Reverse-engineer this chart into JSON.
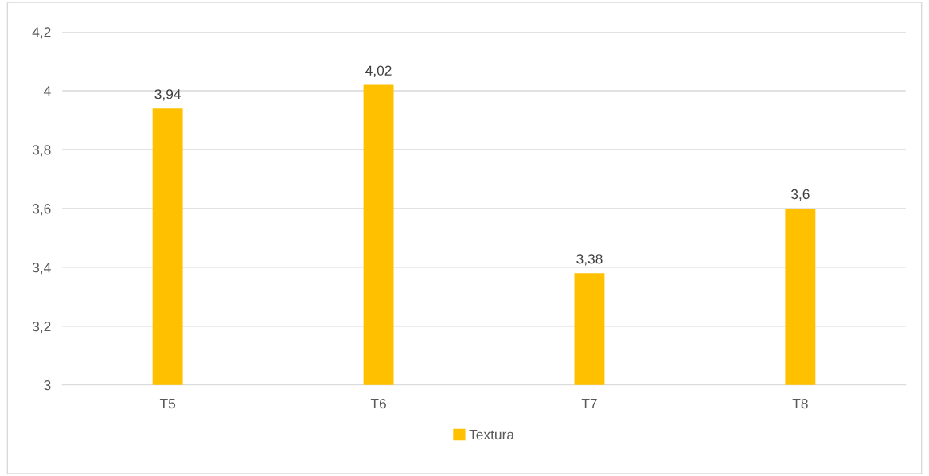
{
  "chart_data": {
    "type": "bar",
    "categories": [
      "T5",
      "T6",
      "T7",
      "T8"
    ],
    "series": [
      {
        "name": "Textura",
        "color": "#ffc000",
        "values": [
          3.94,
          4.02,
          3.38,
          3.6
        ],
        "value_labels": [
          "3,94",
          "4,02",
          "3,38",
          "3,6"
        ]
      }
    ],
    "ylim": [
      3,
      4.2
    ],
    "yticks": [
      {
        "value": 3,
        "label": "3"
      },
      {
        "value": 3.2,
        "label": "3,2"
      },
      {
        "value": 3.4,
        "label": "3,4"
      },
      {
        "value": 3.6,
        "label": "3,6"
      },
      {
        "value": 3.8,
        "label": "3,8"
      },
      {
        "value": 4,
        "label": "4"
      },
      {
        "value": 4.2,
        "label": "4,2"
      }
    ],
    "grid": "y",
    "legend": "bottom"
  }
}
